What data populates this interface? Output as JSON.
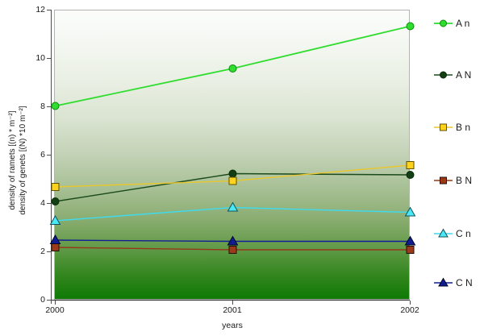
{
  "axes": {
    "y_ticks": [
      0,
      2,
      4,
      6,
      8,
      10,
      12
    ],
    "x_ticks": [
      "2000",
      "2001",
      "2002"
    ],
    "x_label": "years",
    "y_label_line1": "density of ramets [(n) * m⁻²]",
    "y_label_line2": "density of genets [(N) *10 m⁻²]"
  },
  "chart_data": {
    "type": "line",
    "x": [
      2000,
      2001,
      2002
    ],
    "series": [
      {
        "name": "A n",
        "values": [
          8.05,
          9.6,
          11.35
        ],
        "color": "#2fdd2f",
        "marker": "circle",
        "marker_fill": "#2fdd2f",
        "marker_edge": "#0b8a0b",
        "line_width": 1.8
      },
      {
        "name": "A N",
        "values": [
          4.1,
          5.25,
          5.2
        ],
        "color": "#1b4a1b",
        "marker": "circle",
        "marker_fill": "#143e14",
        "marker_edge": "#082c08",
        "line_width": 1.4
      },
      {
        "name": "B n",
        "values": [
          4.7,
          4.95,
          5.6
        ],
        "color": "#e9c72e",
        "marker": "square",
        "marker_fill": "#ffd21c",
        "marker_edge": "#5a5200",
        "line_width": 1.4
      },
      {
        "name": "B N",
        "values": [
          2.2,
          2.1,
          2.1
        ],
        "color": "#96381c",
        "marker": "square",
        "marker_fill": "#9c3a18",
        "marker_edge": "#1f1208",
        "line_width": 1.4
      },
      {
        "name": "C n",
        "values": [
          3.3,
          3.85,
          3.65
        ],
        "color": "#3edbee",
        "marker": "triangle",
        "marker_fill": "#4ae9f7",
        "marker_edge": "#155157",
        "line_width": 1.4
      },
      {
        "name": "C N",
        "values": [
          2.5,
          2.45,
          2.45
        ],
        "color": "#131e96",
        "marker": "triangle",
        "marker_fill": "#101d92",
        "marker_edge": "#02071f",
        "line_width": 1.4
      }
    ],
    "title": "",
    "xlabel": "years",
    "ylabel": "density of ramets [(n) * m⁻²] / density of genets [(N) *10 m⁻²]",
    "ylim": [
      0,
      12
    ],
    "y_tick_step": 2,
    "grid": false,
    "legend_position": "right",
    "plot_background_gradient_top": "#fcfdfb",
    "plot_background_gradient_bottom": "#0e7a04"
  }
}
